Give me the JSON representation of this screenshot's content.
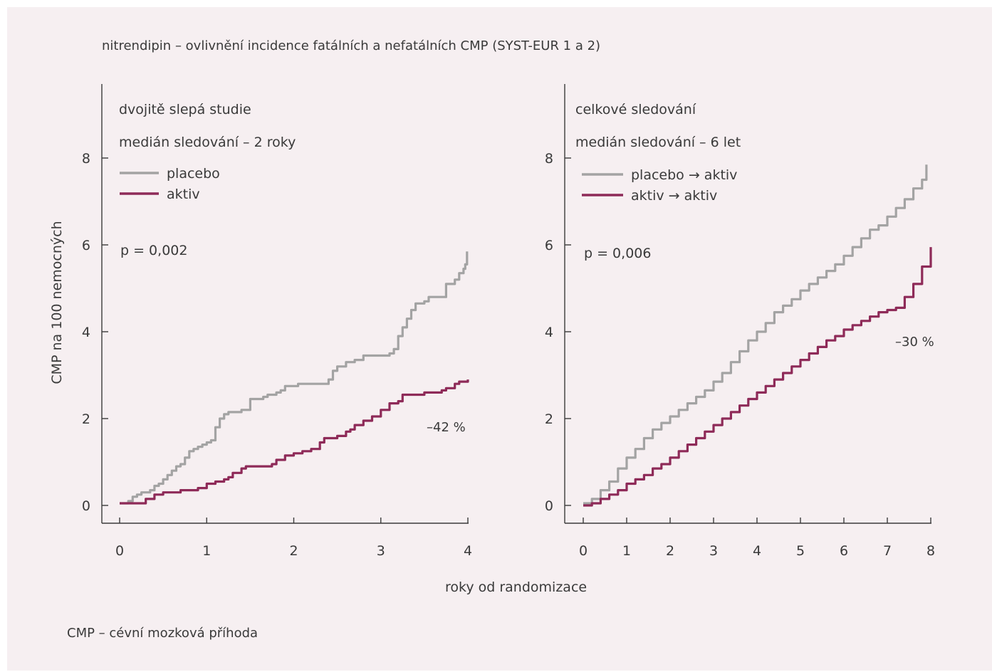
{
  "title": "nitrendipin – ovlivnění incidence fatálních a nefatálních CMP (SYST-EUR 1 a 2)",
  "footnote": "CMP – cévní mozková příhoda",
  "colors": {
    "placebo": "#a3a3a3",
    "active": "#8e2a58",
    "text": "#3a3a3a",
    "background": "#f6eff1"
  },
  "chart_data": [
    {
      "type": "line",
      "xlabel": "roky od randomizace",
      "ylabel": "CMP na 100 nemocných",
      "xlim": [
        0,
        4
      ],
      "ylim": [
        0,
        8
      ],
      "x_ticks": [
        "0",
        "1",
        "2",
        "3",
        "4"
      ],
      "y_ticks": [
        "0",
        "2",
        "4",
        "6",
        "8"
      ],
      "subtitle": "dvojitě slepá studie",
      "subtitle2": "medián sledování – 2 roky",
      "legend": "top-left",
      "pvalue": "p = 0,002",
      "reduction": "–42 %",
      "series": [
        {
          "name": "placebo",
          "color": "#a3a3a3",
          "x": [
            0,
            0.1,
            0.15,
            0.2,
            0.25,
            0.3,
            0.35,
            0.4,
            0.45,
            0.5,
            0.55,
            0.6,
            0.65,
            0.7,
            0.75,
            0.8,
            0.85,
            0.9,
            0.95,
            1.0,
            1.05,
            1.1,
            1.15,
            1.2,
            1.25,
            1.3,
            1.4,
            1.5,
            1.6,
            1.65,
            1.7,
            1.8,
            1.85,
            1.9,
            2.0,
            2.05,
            2.1,
            2.3,
            2.4,
            2.45,
            2.5,
            2.6,
            2.7,
            2.8,
            2.95,
            3.1,
            3.15,
            3.2,
            3.25,
            3.3,
            3.35,
            3.4,
            3.5,
            3.55,
            3.65,
            3.75,
            3.85,
            3.9,
            3.95,
            3.97,
            3.99
          ],
          "values": [
            0.05,
            0.1,
            0.2,
            0.25,
            0.3,
            0.3,
            0.35,
            0.45,
            0.5,
            0.6,
            0.7,
            0.8,
            0.9,
            0.95,
            1.1,
            1.25,
            1.3,
            1.35,
            1.4,
            1.45,
            1.5,
            1.8,
            2.0,
            2.1,
            2.15,
            2.15,
            2.2,
            2.45,
            2.45,
            2.5,
            2.55,
            2.6,
            2.65,
            2.75,
            2.75,
            2.8,
            2.8,
            2.8,
            2.9,
            3.1,
            3.2,
            3.3,
            3.35,
            3.45,
            3.45,
            3.5,
            3.6,
            3.9,
            4.1,
            4.3,
            4.5,
            4.65,
            4.7,
            4.8,
            4.8,
            5.1,
            5.2,
            5.35,
            5.45,
            5.55,
            5.85
          ]
        },
        {
          "name": "aktiv",
          "color": "#8e2a58",
          "x": [
            0,
            0.2,
            0.3,
            0.4,
            0.5,
            0.6,
            0.65,
            0.7,
            0.85,
            0.9,
            1.0,
            1.1,
            1.2,
            1.25,
            1.3,
            1.4,
            1.45,
            1.5,
            1.75,
            1.8,
            1.9,
            2.0,
            2.1,
            2.2,
            2.3,
            2.35,
            2.5,
            2.6,
            2.65,
            2.7,
            2.8,
            2.9,
            3.0,
            3.1,
            3.2,
            3.25,
            3.5,
            3.6,
            3.7,
            3.75,
            3.85,
            3.9,
            4.0
          ],
          "values": [
            0.05,
            0.05,
            0.15,
            0.25,
            0.3,
            0.3,
            0.3,
            0.35,
            0.35,
            0.4,
            0.5,
            0.55,
            0.6,
            0.65,
            0.75,
            0.85,
            0.9,
            0.9,
            0.95,
            1.05,
            1.15,
            1.2,
            1.25,
            1.3,
            1.45,
            1.55,
            1.6,
            1.7,
            1.75,
            1.85,
            1.95,
            2.05,
            2.2,
            2.35,
            2.4,
            2.55,
            2.6,
            2.6,
            2.65,
            2.7,
            2.8,
            2.85,
            2.9
          ]
        }
      ]
    },
    {
      "type": "line",
      "xlabel": "roky od randomizace",
      "ylabel": "CMP na 100 nemocných",
      "xlim": [
        0,
        8
      ],
      "ylim": [
        0,
        8
      ],
      "x_ticks": [
        "0",
        "1",
        "2",
        "3",
        "4",
        "5",
        "6",
        "7",
        "8"
      ],
      "y_ticks": [
        "0",
        "2",
        "4",
        "6",
        "8"
      ],
      "subtitle": "celkové sledování",
      "subtitle2": "medián sledování – 6 let",
      "legend": "top-left",
      "pvalue": "p = 0,006",
      "reduction": "–30 %",
      "series": [
        {
          "name": "placebo → aktiv",
          "color": "#a3a3a3",
          "x": [
            0,
            0.2,
            0.4,
            0.6,
            0.8,
            1.0,
            1.2,
            1.4,
            1.6,
            1.8,
            2.0,
            2.2,
            2.4,
            2.6,
            2.8,
            3.0,
            3.2,
            3.4,
            3.6,
            3.8,
            4.0,
            4.2,
            4.4,
            4.6,
            4.8,
            5.0,
            5.2,
            5.4,
            5.6,
            5.8,
            6.0,
            6.2,
            6.4,
            6.6,
            6.8,
            7.0,
            7.2,
            7.4,
            7.6,
            7.8,
            7.9
          ],
          "values": [
            0.05,
            0.15,
            0.35,
            0.55,
            0.85,
            1.1,
            1.3,
            1.55,
            1.75,
            1.9,
            2.05,
            2.2,
            2.35,
            2.5,
            2.65,
            2.85,
            3.05,
            3.3,
            3.55,
            3.8,
            4.0,
            4.2,
            4.45,
            4.6,
            4.75,
            4.95,
            5.1,
            5.25,
            5.4,
            5.55,
            5.75,
            5.95,
            6.15,
            6.35,
            6.45,
            6.65,
            6.85,
            7.05,
            7.3,
            7.5,
            7.85
          ]
        },
        {
          "name": "aktiv → aktiv",
          "color": "#8e2a58",
          "x": [
            0,
            0.2,
            0.4,
            0.6,
            0.8,
            1.0,
            1.2,
            1.4,
            1.6,
            1.8,
            2.0,
            2.2,
            2.4,
            2.6,
            2.8,
            3.0,
            3.2,
            3.4,
            3.6,
            3.8,
            4.0,
            4.2,
            4.4,
            4.6,
            4.8,
            5.0,
            5.2,
            5.4,
            5.6,
            5.8,
            6.0,
            6.2,
            6.4,
            6.6,
            6.8,
            7.0,
            7.2,
            7.4,
            7.6,
            7.8,
            8.0
          ],
          "values": [
            0.0,
            0.05,
            0.15,
            0.25,
            0.35,
            0.5,
            0.6,
            0.7,
            0.85,
            0.95,
            1.1,
            1.25,
            1.4,
            1.55,
            1.7,
            1.85,
            2.0,
            2.15,
            2.3,
            2.45,
            2.6,
            2.75,
            2.9,
            3.05,
            3.2,
            3.35,
            3.5,
            3.65,
            3.8,
            3.9,
            4.05,
            4.15,
            4.25,
            4.35,
            4.45,
            4.5,
            4.55,
            4.8,
            5.1,
            5.5,
            5.95
          ]
        }
      ]
    }
  ]
}
